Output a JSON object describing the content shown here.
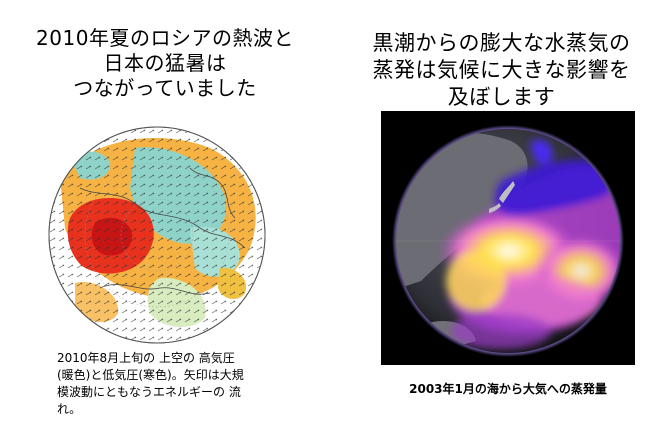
{
  "left_panel": {
    "title_lines": [
      "2010年夏のロシアの熱波と",
      "日本の猛暑は",
      "つながっていました"
    ],
    "image_icon": "northern-hemisphere-map-globe",
    "caption_lines": [
      "2010年8月上旬の 上空の 高気圧",
      "(暖色)と低気圧(寒色)。矢印は大規",
      "模波動にともなうエネルギーの 流",
      "れ。"
    ]
  },
  "right_panel": {
    "title_lines": [
      "黒潮からの膨大な水蒸気の",
      "蒸発は気候に大きな影響を",
      "及ぼします"
    ],
    "image_icon": "pacific-evaporation-globe",
    "caption": "2003年1月の海から大気への蒸発量"
  },
  "colors": {
    "warm": "#e8321e",
    "orange": "#f5a623",
    "cool": "#8fd3c8",
    "evaporation_high": "#ffe14d",
    "evaporation_low": "#3b1bd6"
  }
}
